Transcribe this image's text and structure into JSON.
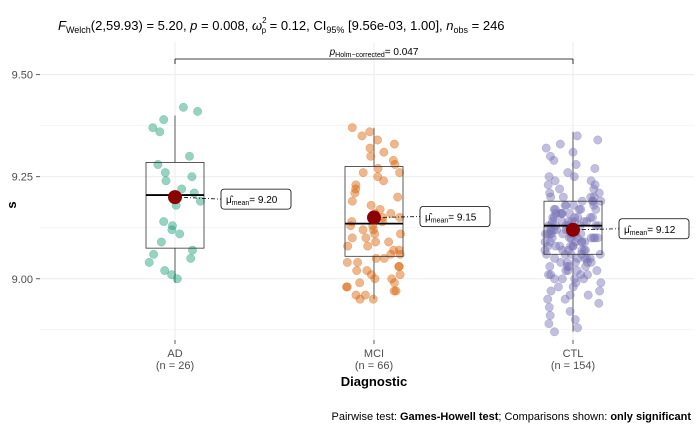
{
  "chart_data": {
    "type": "box-violin-scatter",
    "title": "F Welch(2,59.93) = 5.20, p = 0.008, ω̂²p = 0.12, CI95% [9.56e-03, 1.00], nobs = 246",
    "title_parts": {
      "f_sym": "F",
      "f_sub": "Welch",
      "f_val": "(2,59.93) = 5.20, ",
      "p_sym": "p",
      "p_val": " = 0.008, ",
      "omega_sym": "ω",
      "omega_sup": "2",
      "omega_sub": "p",
      "omega_val": " = 0.12, CI",
      "ci_sub": "95%",
      "ci_val": " [9.56e-03, 1.00], ",
      "n_sym": "n",
      "n_sub": "obs",
      "n_val": " = 246"
    },
    "xlabel": "Diagnostic",
    "ylabel": "s",
    "ylim": [
      8.85,
      9.58
    ],
    "yticks": [
      9.0,
      9.25,
      9.5
    ],
    "ytick_labels": [
      "9.00",
      "9.25",
      "9.50"
    ],
    "grid": true,
    "caption": {
      "prefix": "Pairwise test: ",
      "test": "Games-Howell test",
      "middle": "; Comparisons shown: ",
      "shown": "only significant"
    },
    "comparison": {
      "from": "AD",
      "to": "CTL",
      "label_sym": "p",
      "label_sub": "Holm−corrected",
      "label_val": "= 0.047"
    },
    "groups": [
      {
        "name": "AD",
        "n_label": "(n = 26)",
        "color": "#1b9e77",
        "box": {
          "q1": 9.075,
          "median": 9.205,
          "q3": 9.285,
          "whisker_low": 8.99,
          "whisker_high": 9.4
        },
        "mean": 9.2,
        "mean_label": "= 9.20",
        "points": [
          9.42,
          9.41,
          9.39,
          9.37,
          9.36,
          9.3,
          9.28,
          9.26,
          9.25,
          9.24,
          9.22,
          9.21,
          9.19,
          9.18,
          9.14,
          9.13,
          9.12,
          9.11,
          9.09,
          9.07,
          9.06,
          9.05,
          9.04,
          9.02,
          9.01,
          9.0
        ]
      },
      {
        "name": "MCI",
        "n_label": "(n = 66)",
        "color": "#d95f02",
        "box": {
          "q1": 9.055,
          "median": 9.135,
          "q3": 9.275,
          "whisker_low": 8.95,
          "whisker_high": 9.37
        },
        "mean": 9.15,
        "mean_label": "= 9.15",
        "points": [
          9.37,
          9.36,
          9.35,
          9.34,
          9.33,
          9.32,
          9.31,
          9.3,
          9.29,
          9.28,
          9.27,
          9.26,
          9.25,
          9.24,
          9.23,
          9.22,
          9.21,
          9.2,
          9.19,
          9.18,
          9.17,
          9.16,
          9.15,
          9.15,
          9.14,
          9.14,
          9.13,
          9.13,
          9.12,
          9.12,
          9.11,
          9.11,
          9.1,
          9.1,
          9.09,
          9.09,
          9.08,
          9.08,
          9.07,
          9.07,
          9.06,
          9.06,
          9.05,
          9.05,
          9.04,
          9.04,
          9.03,
          9.03,
          9.02,
          9.02,
          9.01,
          9.01,
          9.0,
          9.0,
          8.99,
          8.99,
          8.98,
          8.98,
          8.97,
          8.97,
          8.96,
          8.96,
          8.95,
          8.95,
          9.16,
          9.26
        ]
      },
      {
        "name": "CTL",
        "n_label": "(n = 154)",
        "color": "#7570b3",
        "box": {
          "q1": 9.06,
          "median": 9.13,
          "q3": 9.19,
          "whisker_low": 8.87,
          "whisker_high": 9.36
        },
        "mean": 9.12,
        "mean_label": "= 9.12",
        "points": [
          9.35,
          9.34,
          9.33,
          9.32,
          9.31,
          9.3,
          9.29,
          9.28,
          9.27,
          9.26,
          9.25,
          9.25,
          9.24,
          9.24,
          9.23,
          9.23,
          9.22,
          9.22,
          9.21,
          9.21,
          9.2,
          9.2,
          9.2,
          9.19,
          9.19,
          9.19,
          9.18,
          9.18,
          9.18,
          9.17,
          9.17,
          9.17,
          9.17,
          9.16,
          9.16,
          9.16,
          9.16,
          9.15,
          9.15,
          9.15,
          9.15,
          9.15,
          9.14,
          9.14,
          9.14,
          9.14,
          9.14,
          9.13,
          9.13,
          9.13,
          9.13,
          9.13,
          9.13,
          9.12,
          9.12,
          9.12,
          9.12,
          9.12,
          9.12,
          9.11,
          9.11,
          9.11,
          9.11,
          9.11,
          9.11,
          9.1,
          9.1,
          9.1,
          9.1,
          9.1,
          9.1,
          9.09,
          9.09,
          9.09,
          9.09,
          9.09,
          9.08,
          9.08,
          9.08,
          9.08,
          9.08,
          9.07,
          9.07,
          9.07,
          9.07,
          9.07,
          9.06,
          9.06,
          9.06,
          9.06,
          9.05,
          9.05,
          9.05,
          9.05,
          9.04,
          9.04,
          9.04,
          9.04,
          9.03,
          9.03,
          9.03,
          9.02,
          9.02,
          9.02,
          9.01,
          9.01,
          9.01,
          9.0,
          9.0,
          9.0,
          8.99,
          8.99,
          8.98,
          8.98,
          8.97,
          8.97,
          8.96,
          8.96,
          8.95,
          8.95,
          8.94,
          8.93,
          8.92,
          8.91,
          8.9,
          8.89,
          8.88,
          8.87,
          9.2,
          9.19,
          9.18,
          9.17,
          9.16,
          9.15,
          9.14,
          9.13,
          9.12,
          9.11,
          9.1,
          9.09,
          9.08,
          9.07,
          9.06,
          9.05,
          9.04,
          9.03,
          9.02,
          9.01,
          9.0,
          9.13,
          9.12,
          9.11,
          9.14,
          9.1
        ]
      }
    ]
  },
  "colors": {
    "mean_point": "#8b0000",
    "grid": "#ebebeb",
    "text": "#4d4d4d"
  }
}
